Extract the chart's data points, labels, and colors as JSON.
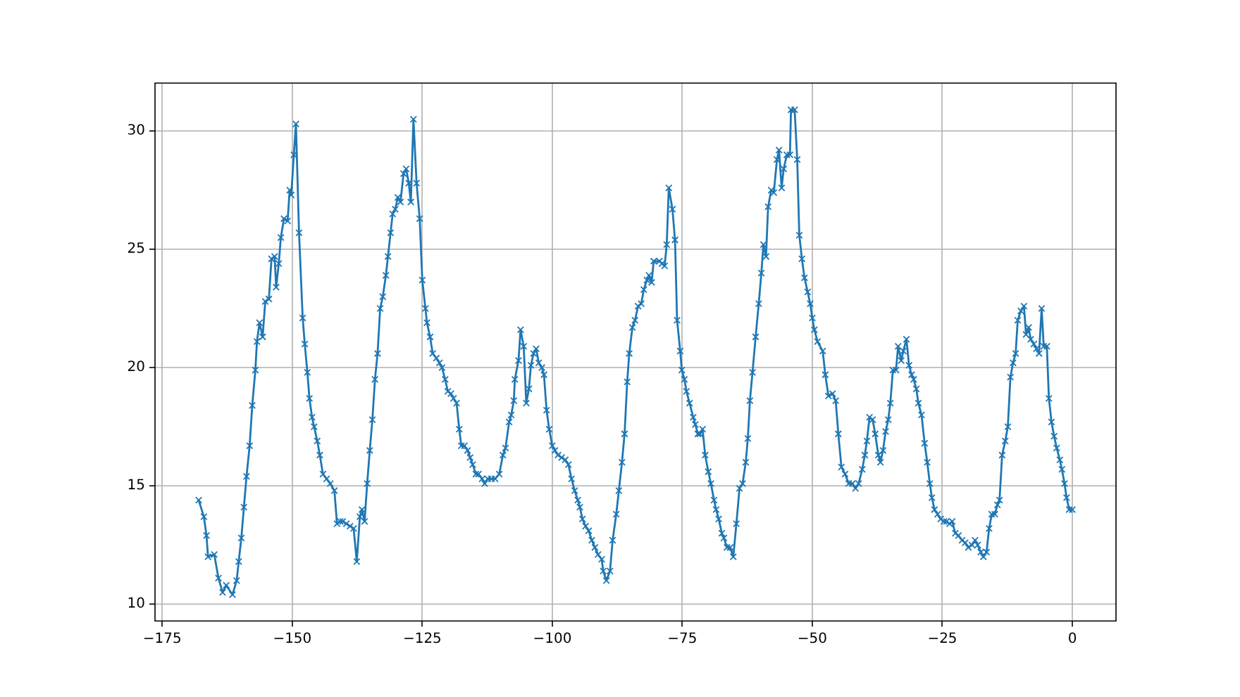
{
  "chart_data": {
    "type": "line",
    "xlim": [
      -176.4,
      8.4
    ],
    "ylim": [
      9.29,
      32.03
    ],
    "xticks": [
      {
        "value": -175,
        "label": "−175"
      },
      {
        "value": -150,
        "label": "−150"
      },
      {
        "value": -125,
        "label": "−125"
      },
      {
        "value": -100,
        "label": "−100"
      },
      {
        "value": -75,
        "label": "−75"
      },
      {
        "value": -50,
        "label": "−50"
      },
      {
        "value": -25,
        "label": "−25"
      },
      {
        "value": 0,
        "label": "0"
      }
    ],
    "yticks": [
      10,
      15,
      20,
      25,
      30
    ],
    "grid": true,
    "legend": false,
    "marker": "cross",
    "line_style": "solid",
    "series": [
      {
        "color": "#1f77b4",
        "x": [
          -168,
          -167,
          -166.5,
          -166.2,
          -165,
          -164.2,
          -163.4,
          -162.7,
          -161.5,
          -160.7,
          -160.3,
          -159.8,
          -159.3,
          -158.8,
          -158.2,
          -157.7,
          -157.1,
          -156.8,
          -156.3,
          -155.7,
          -155.2,
          -154.5,
          -154,
          -153.4,
          -153.1,
          -152.6,
          -152.2,
          -151.6,
          -150.9,
          -150.5,
          -150.2,
          -149.7,
          -149.3,
          -148.7,
          -148,
          -147.6,
          -147.1,
          -146.7,
          -146.2,
          -145.8,
          -145.2,
          -144.7,
          -144.1,
          -143.4,
          -142.7,
          -141.9,
          -141.4,
          -140.8,
          -140.3,
          -139.6,
          -138.9,
          -138.2,
          -137.6,
          -137,
          -136.6,
          -136.1,
          -135.6,
          -135.1,
          -134.6,
          -134.1,
          -133.6,
          -133.1,
          -132.6,
          -132,
          -131.6,
          -131.1,
          -130.7,
          -130.2,
          -129.7,
          -129.2,
          -128.6,
          -128.1,
          -127.6,
          -127.2,
          -126.7,
          -126.1,
          -125.5,
          -125,
          -124.4,
          -124.1,
          -123.5,
          -123,
          -122.3,
          -121.7,
          -121.2,
          -120.6,
          -120.1,
          -119.5,
          -119,
          -118.4,
          -117.9,
          -117.5,
          -116.9,
          -116.3,
          -115.8,
          -115.3,
          -114.7,
          -114.2,
          -113.5,
          -113,
          -112.4,
          -111.7,
          -111,
          -110.2,
          -109.5,
          -109,
          -108.3,
          -107.9,
          -107.4,
          -107.2,
          -106.5,
          -106.1,
          -105.5,
          -105,
          -104.5,
          -104.1,
          -103.6,
          -103.1,
          -102.6,
          -102,
          -101.6,
          -101.1,
          -100.6,
          -100,
          -99.5,
          -98.9,
          -98.2,
          -97.5,
          -96.9,
          -96.3,
          -95.7,
          -95.1,
          -94.7,
          -94.2,
          -93.6,
          -93,
          -92.4,
          -91.8,
          -91.2,
          -90.5,
          -90.2,
          -89.6,
          -88.9,
          -88.4,
          -87.7,
          -87.2,
          -86.6,
          -86.1,
          -85.6,
          -85.2,
          -84.6,
          -84.1,
          -83.5,
          -82.9,
          -82.4,
          -81.8,
          -81.4,
          -80.9,
          -80.5,
          -79.4,
          -78.9,
          -78.4,
          -78,
          -77.6,
          -76.9,
          -76.4,
          -76,
          -75.4,
          -75.1,
          -74.6,
          -74.2,
          -73.6,
          -72.9,
          -72.5,
          -72,
          -71.6,
          -71.1,
          -70.6,
          -70,
          -69.5,
          -68.9,
          -68.5,
          -68,
          -67.4,
          -67,
          -66.4,
          -65.8,
          -65.2,
          -64.6,
          -64,
          -63.4,
          -62.8,
          -62.4,
          -62,
          -61.5,
          -60.9,
          -60.3,
          -59.8,
          -59.4,
          -58.9,
          -58.5,
          -57.9,
          -57.4,
          -56.8,
          -56.4,
          -55.9,
          -55.5,
          -54.9,
          -54.3,
          -54.1,
          -53.4,
          -52.9,
          -52.5,
          -52,
          -51.5,
          -50.9,
          -50.4,
          -50,
          -49.6,
          -49,
          -48,
          -47.5,
          -46.9,
          -46.1,
          -45.5,
          -45,
          -44.4,
          -43.7,
          -43,
          -42.3,
          -41.7,
          -41.1,
          -40.4,
          -39.9,
          -39.5,
          -39,
          -38.4,
          -37.9,
          -37.3,
          -36.9,
          -36.4,
          -35.9,
          -35.4,
          -35,
          -34.5,
          -33.9,
          -33.5,
          -32.9,
          -32.5,
          -31.9,
          -31.4,
          -30.9,
          -30.5,
          -30,
          -29.6,
          -29,
          -28.4,
          -27.9,
          -27.4,
          -27,
          -26.5,
          -25.9,
          -25.3,
          -24.7,
          -24.2,
          -23.6,
          -23.1,
          -22.5,
          -21.9,
          -21.2,
          -20.6,
          -20,
          -19.3,
          -18.7,
          -18.2,
          -17.6,
          -17.1,
          -16.5,
          -16,
          -15.5,
          -14.9,
          -14.4,
          -14,
          -13.5,
          -12.9,
          -12.4,
          -11.9,
          -11.4,
          -10.9,
          -10.5,
          -9.9,
          -9.3,
          -8.9,
          -8.4,
          -8,
          -7.4,
          -6.9,
          -6.4,
          -5.9,
          -5.5,
          -4.9,
          -4.5,
          -4,
          -3.5,
          -3,
          -2.4,
          -2,
          -1.5,
          -1.1,
          -0.6,
          0
        ],
        "values": [
          14.4,
          13.7,
          12.9,
          12.0,
          12.1,
          11.1,
          10.5,
          10.8,
          10.4,
          11.0,
          11.8,
          12.8,
          14.1,
          15.4,
          16.7,
          18.4,
          19.9,
          21.1,
          21.9,
          21.3,
          22.8,
          22.9,
          24.6,
          24.7,
          23.4,
          24.4,
          25.5,
          26.3,
          26.2,
          27.5,
          27.3,
          29.0,
          30.3,
          25.7,
          22.1,
          21.0,
          19.8,
          18.7,
          17.9,
          17.5,
          16.9,
          16.3,
          15.5,
          15.3,
          15.1,
          14.8,
          13.4,
          13.5,
          13.5,
          13.4,
          13.3,
          13.2,
          11.8,
          13.7,
          14.0,
          13.5,
          15.1,
          16.5,
          17.8,
          19.5,
          20.6,
          22.5,
          23.0,
          23.9,
          24.7,
          25.7,
          26.5,
          26.7,
          27.2,
          27.0,
          28.2,
          28.4,
          27.8,
          27.0,
          30.5,
          27.8,
          26.3,
          23.7,
          22.5,
          21.9,
          21.3,
          20.6,
          20.4,
          20.2,
          20.0,
          19.5,
          19.0,
          18.9,
          18.7,
          18.5,
          17.4,
          16.7,
          16.7,
          16.5,
          16.2,
          15.9,
          15.5,
          15.5,
          15.3,
          15.1,
          15.3,
          15.3,
          15.3,
          15.5,
          16.3,
          16.6,
          17.7,
          18.0,
          18.6,
          19.5,
          20.3,
          21.6,
          20.9,
          18.5,
          19.1,
          20.1,
          20.6,
          20.8,
          20.2,
          20.0,
          19.7,
          18.2,
          17.4,
          16.7,
          16.5,
          16.3,
          16.2,
          16.1,
          15.9,
          15.3,
          14.8,
          14.4,
          14.1,
          13.6,
          13.3,
          13.1,
          12.7,
          12.4,
          12.1,
          11.9,
          11.4,
          11.0,
          11.4,
          12.7,
          13.8,
          14.8,
          16.0,
          17.2,
          19.4,
          20.6,
          21.7,
          22.0,
          22.6,
          22.7,
          23.3,
          23.7,
          23.9,
          23.6,
          24.5,
          24.5,
          24.4,
          24.3,
          25.2,
          27.6,
          26.7,
          25.4,
          22.0,
          20.7,
          19.9,
          19.5,
          19.0,
          18.5,
          17.9,
          17.6,
          17.2,
          17.2,
          17.4,
          16.3,
          15.6,
          15.1,
          14.4,
          14.0,
          13.6,
          13.0,
          12.8,
          12.4,
          12.4,
          12.0,
          13.4,
          14.9,
          15.1,
          16.0,
          17.0,
          18.6,
          19.8,
          21.3,
          22.7,
          24.0,
          25.2,
          24.7,
          26.8,
          27.5,
          27.4,
          28.8,
          29.2,
          27.6,
          28.4,
          29.0,
          29.0,
          30.9,
          30.9,
          28.8,
          25.6,
          24.6,
          23.8,
          23.2,
          22.7,
          22.1,
          21.6,
          21.1,
          20.7,
          19.7,
          18.8,
          18.9,
          18.6,
          17.2,
          15.8,
          15.5,
          15.1,
          15.1,
          14.9,
          15.1,
          15.7,
          16.3,
          16.9,
          17.9,
          17.8,
          17.2,
          16.3,
          16.0,
          16.5,
          17.3,
          17.8,
          18.5,
          19.9,
          19.9,
          20.9,
          20.3,
          20.7,
          21.2,
          20.1,
          19.7,
          19.5,
          19.1,
          18.5,
          18.0,
          16.8,
          16.0,
          15.1,
          14.5,
          14.0,
          13.8,
          13.6,
          13.5,
          13.5,
          13.4,
          13.5,
          13.0,
          12.9,
          12.7,
          12.6,
          12.4,
          12.5,
          12.7,
          12.5,
          12.2,
          12.0,
          12.2,
          13.2,
          13.8,
          13.8,
          14.2,
          14.4,
          16.3,
          16.9,
          17.5,
          19.6,
          20.2,
          20.6,
          22.0,
          22.4,
          22.6,
          21.4,
          21.7,
          21.2,
          21.0,
          20.8,
          20.6,
          22.5,
          20.9,
          20.9,
          18.7,
          17.7,
          17.1,
          16.6,
          16.1,
          15.7,
          15.1,
          14.5,
          14.0,
          14.0
        ]
      }
    ]
  }
}
